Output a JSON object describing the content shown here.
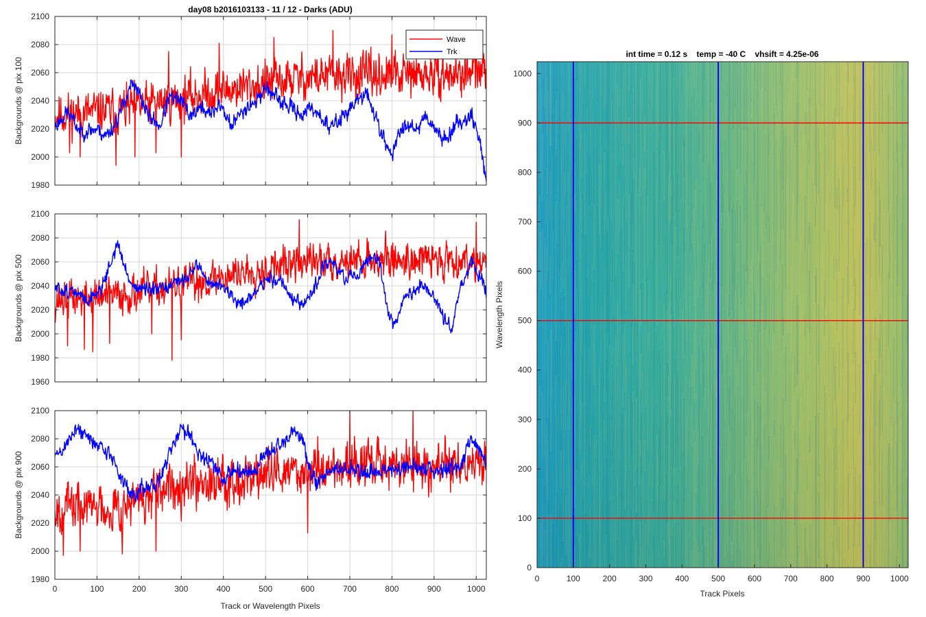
{
  "figure": {
    "title": "day08 b2016103133 - 11 / 12 - Darks (ADU)"
  },
  "colors": {
    "wave": "#ff0000",
    "trk": "#0000ff",
    "axis": "#262626",
    "grid": "#d6d6d6",
    "heat_low": "#1f9bbd",
    "heat_mid": "#3fae9c",
    "heat_high": "#c8c45a"
  },
  "chart_data": [
    {
      "type": "line",
      "title": "day08 b2016103133 - 11 / 12 - Darks (ADU)",
      "xlabel": "",
      "ylabel": "Backgrounds @ pix 100",
      "xlim": [
        0,
        1024
      ],
      "ylim": [
        1980,
        2100
      ],
      "xticks": [
        0,
        100,
        200,
        300,
        400,
        500,
        600,
        700,
        800,
        900,
        1000
      ],
      "yticks": [
        1980,
        2000,
        2020,
        2040,
        2060,
        2080,
        2100
      ],
      "grid": true,
      "legend": {
        "placement": "top-right",
        "entries": [
          "Wave",
          "Trk"
        ]
      },
      "series": [
        {
          "name": "Wave",
          "color": "#ff0000",
          "noise": 11,
          "seed": 11,
          "trend": [
            [
              0,
              2030
            ],
            [
              150,
              2033
            ],
            [
              300,
              2042
            ],
            [
              450,
              2050
            ],
            [
              600,
              2057
            ],
            [
              750,
              2058
            ],
            [
              900,
              2058
            ],
            [
              1024,
              2060
            ]
          ],
          "spikes": [
            [
              35,
              2003
            ],
            [
              60,
              2000
            ],
            [
              145,
              1994
            ],
            [
              190,
              2000
            ],
            [
              240,
              2003
            ],
            [
              270,
              2075
            ],
            [
              300,
              2000
            ],
            [
              390,
              2081
            ],
            [
              520,
              2085
            ],
            [
              660,
              2090
            ],
            [
              800,
              2087
            ],
            [
              1000,
              2083
            ]
          ]
        },
        {
          "name": "Trk",
          "color": "#0000ff",
          "noise": 4,
          "seed": 23,
          "trend": [
            [
              0,
              2022
            ],
            [
              30,
              2032
            ],
            [
              60,
              2018
            ],
            [
              100,
              2020
            ],
            [
              120,
              2015
            ],
            [
              140,
              2022
            ],
            [
              160,
              2035
            ],
            [
              180,
              2052
            ],
            [
              200,
              2045
            ],
            [
              220,
              2030
            ],
            [
              250,
              2022
            ],
            [
              270,
              2042
            ],
            [
              300,
              2040
            ],
            [
              320,
              2030
            ],
            [
              350,
              2035
            ],
            [
              370,
              2030
            ],
            [
              390,
              2038
            ],
            [
              420,
              2022
            ],
            [
              450,
              2035
            ],
            [
              480,
              2040
            ],
            [
              500,
              2050
            ],
            [
              530,
              2040
            ],
            [
              560,
              2035
            ],
            [
              590,
              2030
            ],
            [
              610,
              2035
            ],
            [
              630,
              2030
            ],
            [
              650,
              2020
            ],
            [
              680,
              2028
            ],
            [
              710,
              2038
            ],
            [
              740,
              2045
            ],
            [
              760,
              2030
            ],
            [
              780,
              2012
            ],
            [
              800,
              2002
            ],
            [
              820,
              2018
            ],
            [
              840,
              2025
            ],
            [
              860,
              2020
            ],
            [
              880,
              2030
            ],
            [
              900,
              2022
            ],
            [
              920,
              2012
            ],
            [
              940,
              2018
            ],
            [
              960,
              2025
            ],
            [
              990,
              2030
            ],
            [
              1005,
              2015
            ],
            [
              1024,
              1985
            ]
          ]
        }
      ]
    },
    {
      "type": "line",
      "title": "",
      "xlabel": "",
      "ylabel": "Backgrounds @ pix 500",
      "xlim": [
        0,
        1024
      ],
      "ylim": [
        1960,
        2100
      ],
      "xticks": [
        0,
        100,
        200,
        300,
        400,
        500,
        600,
        700,
        800,
        900,
        1000
      ],
      "yticks": [
        1960,
        1980,
        2000,
        2020,
        2040,
        2060,
        2080,
        2100
      ],
      "grid": true,
      "series": [
        {
          "name": "Wave",
          "color": "#ff0000",
          "noise": 11,
          "seed": 37,
          "trend": [
            [
              0,
              2028
            ],
            [
              150,
              2032
            ],
            [
              300,
              2040
            ],
            [
              450,
              2052
            ],
            [
              600,
              2060
            ],
            [
              750,
              2062
            ],
            [
              900,
              2062
            ],
            [
              1024,
              2062
            ]
          ],
          "spikes": [
            [
              30,
              1990
            ],
            [
              70,
              1987
            ],
            [
              90,
              1985
            ],
            [
              130,
              1992
            ],
            [
              230,
              2000
            ],
            [
              278,
              1978
            ],
            [
              300,
              1995
            ],
            [
              580,
              2095
            ],
            [
              1000,
              2093
            ]
          ]
        },
        {
          "name": "Trk",
          "color": "#0000ff",
          "noise": 4,
          "seed": 51,
          "trend": [
            [
              0,
              2038
            ],
            [
              40,
              2035
            ],
            [
              80,
              2028
            ],
            [
              110,
              2038
            ],
            [
              135,
              2062
            ],
            [
              150,
              2075
            ],
            [
              165,
              2055
            ],
            [
              185,
              2040
            ],
            [
              230,
              2035
            ],
            [
              280,
              2040
            ],
            [
              320,
              2050
            ],
            [
              340,
              2058
            ],
            [
              360,
              2045
            ],
            [
              380,
              2040
            ],
            [
              400,
              2040
            ],
            [
              420,
              2030
            ],
            [
              440,
              2025
            ],
            [
              470,
              2032
            ],
            [
              500,
              2045
            ],
            [
              540,
              2045
            ],
            [
              560,
              2030
            ],
            [
              590,
              2022
            ],
            [
              600,
              2030
            ],
            [
              620,
              2040
            ],
            [
              640,
              2058
            ],
            [
              660,
              2060
            ],
            [
              690,
              2045
            ],
            [
              720,
              2048
            ],
            [
              750,
              2065
            ],
            [
              770,
              2060
            ],
            [
              790,
              2020
            ],
            [
              805,
              2008
            ],
            [
              830,
              2030
            ],
            [
              870,
              2040
            ],
            [
              900,
              2030
            ],
            [
              920,
              2015
            ],
            [
              940,
              2005
            ],
            [
              960,
              2035
            ],
            [
              990,
              2060
            ],
            [
              1024,
              2035
            ]
          ]
        }
      ]
    },
    {
      "type": "line",
      "title": "",
      "xlabel": "Track or Wavelength Pixels",
      "ylabel": "Backgrounds @ pix 900",
      "xlim": [
        0,
        1024
      ],
      "ylim": [
        1980,
        2100
      ],
      "xticks": [
        0,
        100,
        200,
        300,
        400,
        500,
        600,
        700,
        800,
        900,
        1000
      ],
      "yticks": [
        1980,
        2000,
        2020,
        2040,
        2060,
        2080,
        2100
      ],
      "grid": true,
      "series": [
        {
          "name": "Wave",
          "color": "#ff0000",
          "noise": 12,
          "seed": 67,
          "trend": [
            [
              0,
              2032
            ],
            [
              150,
              2032
            ],
            [
              260,
              2040
            ],
            [
              290,
              2050
            ],
            [
              450,
              2052
            ],
            [
              600,
              2058
            ],
            [
              750,
              2062
            ],
            [
              900,
              2060
            ],
            [
              1024,
              2062
            ]
          ],
          "spikes": [
            [
              20,
              1997
            ],
            [
              60,
              2000
            ],
            [
              160,
              1998
            ],
            [
              240,
              2000
            ],
            [
              600,
              2013
            ],
            [
              700,
              2100
            ],
            [
              850,
              2100
            ]
          ]
        },
        {
          "name": "Trk",
          "color": "#0000ff",
          "noise": 4,
          "seed": 89,
          "trend": [
            [
              0,
              2068
            ],
            [
              20,
              2072
            ],
            [
              50,
              2088
            ],
            [
              80,
              2080
            ],
            [
              110,
              2075
            ],
            [
              140,
              2065
            ],
            [
              160,
              2050
            ],
            [
              180,
              2040
            ],
            [
              210,
              2045
            ],
            [
              240,
              2045
            ],
            [
              260,
              2060
            ],
            [
              280,
              2075
            ],
            [
              300,
              2088
            ],
            [
              320,
              2085
            ],
            [
              340,
              2070
            ],
            [
              380,
              2060
            ],
            [
              400,
              2050
            ],
            [
              430,
              2060
            ],
            [
              470,
              2055
            ],
            [
              500,
              2070
            ],
            [
              540,
              2075
            ],
            [
              570,
              2085
            ],
            [
              590,
              2078
            ],
            [
              600,
              2060
            ],
            [
              620,
              2050
            ],
            [
              660,
              2058
            ],
            [
              700,
              2058
            ],
            [
              750,
              2055
            ],
            [
              800,
              2058
            ],
            [
              850,
              2060
            ],
            [
              900,
              2058
            ],
            [
              960,
              2060
            ],
            [
              990,
              2080
            ],
            [
              1024,
              2065
            ]
          ]
        }
      ]
    },
    {
      "type": "heatmap",
      "title": "int time = 0.12 s    temp = -40 C    vhsift = 4.25e-06",
      "xlabel": "Track Pixels",
      "ylabel": "Wavelength Pixels",
      "xlim": [
        0,
        1024
      ],
      "ylim": [
        0,
        1024
      ],
      "xticks": [
        0,
        100,
        200,
        300,
        400,
        500,
        600,
        700,
        800,
        900,
        1000
      ],
      "yticks": [
        0,
        100,
        200,
        300,
        400,
        500,
        600,
        700,
        800,
        900,
        1000
      ],
      "value_range": [
        2020,
        2070
      ],
      "gradient_note": "values increase left to right, slight maximum near x=850",
      "vertical_lines": [
        100,
        500,
        900
      ],
      "horizontal_lines": [
        100,
        500,
        900
      ]
    }
  ]
}
